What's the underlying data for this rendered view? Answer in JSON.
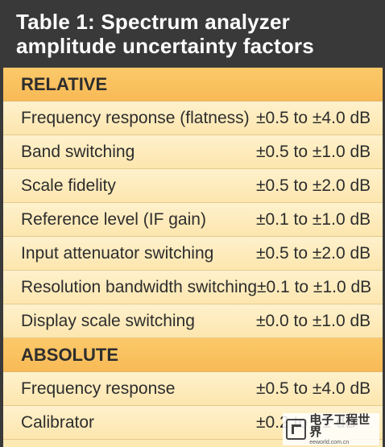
{
  "title": {
    "line1": "Table 1: Spectrum analyzer",
    "line2": "amplitude uncertainty factors"
  },
  "sections": {
    "relative": {
      "heading": "RELATIVE",
      "rows": [
        {
          "label": "Frequency response (flatness)",
          "value": "±0.5 to ±4.0 dB"
        },
        {
          "label": "Band switching",
          "value": "±0.5 to ±1.0 dB"
        },
        {
          "label": "Scale fidelity",
          "value": "±0.5 to ±2.0 dB"
        },
        {
          "label": "Reference level (IF gain)",
          "value": "±0.1 to ±1.0 dB"
        },
        {
          "label": "Input attenuator switching",
          "value": "±0.5 to ±2.0 dB"
        },
        {
          "label": "Resolution bandwidth switching",
          "value": "±0.1 to ±1.0 dB"
        },
        {
          "label": "Display scale switching",
          "value": "±0.0 to ±1.0 dB"
        }
      ]
    },
    "absolute": {
      "heading": "ABSOLUTE",
      "rows": [
        {
          "label": "Frequency response",
          "value": "±0.5 to ±4.0 dB"
        },
        {
          "label": "Calibrator",
          "value": "±0.2 to ±1 dB"
        }
      ]
    }
  },
  "watermark": {
    "main": "电子工程世界",
    "sub": "eeworld.com.cn",
    "logo_icon": "eeworld-logo-icon"
  }
}
